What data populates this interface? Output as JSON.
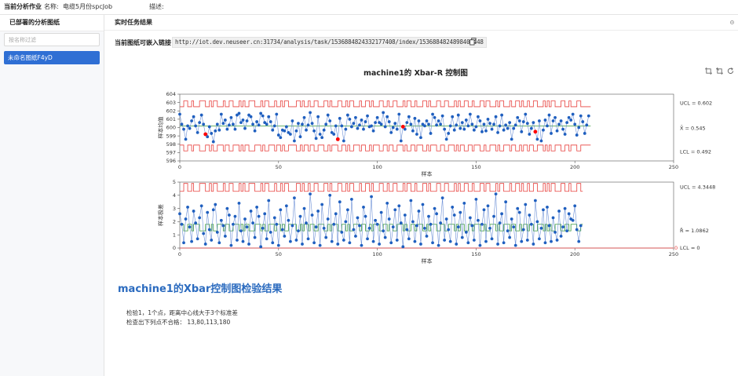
{
  "topbar": {
    "title": "当前分析作业",
    "name_label": "名称:",
    "name_value": "电缆5月份spcJob",
    "desc_label": "描述:"
  },
  "left_panel": {
    "title": "已部署的分析图纸",
    "filter_placeholder": "按名称过滤",
    "items": [
      {
        "label": "未命名图纸F4yD",
        "active": true
      }
    ]
  },
  "right_panel": {
    "title": "实时任务结果",
    "embed_label": "当前图纸可嵌入链接",
    "embed_url": "http://iot.dev.neuseer.cn:31734/analysis/task/1536884824332177408/index/1536884824898408448"
  },
  "icons": {
    "corner": "gear-icon",
    "copy": "copy-icon",
    "tools": [
      "crop-icon",
      "crop-restore-icon",
      "refresh-icon"
    ]
  },
  "colors": {
    "primary": "#2f6fd4",
    "result_title": "#2b6bbf",
    "data_line": "#6b8fd6",
    "data_point": "#1f5fbf",
    "control_limit": "#e8413e",
    "center_line": "#3a9a3a",
    "alarm_point": "#ff0000"
  },
  "chart_data": [
    {
      "type": "line",
      "title": "machine1的 Xbar-R 控制图",
      "xlabel": "样本",
      "ylabel": "样本均值",
      "xlim": [
        0,
        250
      ],
      "ylim": [
        596,
        604
      ],
      "x_ticks": [
        0,
        50,
        100,
        150,
        200,
        250
      ],
      "y_ticks": [
        596,
        597,
        598,
        599,
        600,
        601,
        602,
        603,
        604
      ],
      "limit_labels": {
        "ucl": "UCL = 0.602",
        "center": "X̄ = 0.545",
        "lcl": "LCL = 0.492"
      },
      "center_value": 600.2,
      "ucl_levels": [
        602.5,
        603.2
      ],
      "lcl_levels": [
        597.9,
        597.2
      ],
      "ucl_sequence": [
        0,
        0,
        1,
        1,
        0,
        0,
        1,
        0,
        0,
        0,
        1,
        1,
        1,
        0,
        0,
        1,
        0,
        1,
        1,
        0,
        0,
        0,
        1,
        0,
        0,
        1,
        1,
        0,
        0,
        0,
        1,
        0,
        1,
        0,
        0,
        1,
        1,
        1,
        0,
        0,
        0,
        1,
        0,
        1,
        1,
        0,
        0,
        0,
        1,
        0,
        0,
        1,
        0,
        1,
        1,
        0,
        0,
        0,
        0,
        1,
        1,
        0,
        1,
        0,
        0,
        1,
        0,
        0,
        1,
        1,
        0,
        0,
        0,
        1,
        1,
        0,
        1,
        0,
        0,
        0,
        1,
        1,
        0,
        0,
        1,
        0,
        1,
        1,
        0,
        0,
        0,
        1,
        0,
        0,
        1,
        1,
        0,
        1,
        0,
        0,
        0,
        1,
        1,
        0,
        0,
        1,
        0,
        0,
        1,
        1,
        0,
        0,
        0,
        1,
        0,
        1,
        1,
        0,
        0,
        1,
        0,
        0,
        0,
        1,
        1,
        0,
        1,
        0,
        0,
        0,
        1,
        1,
        0,
        0,
        1,
        1,
        0,
        0,
        0,
        1,
        0,
        1,
        0,
        0,
        1,
        1,
        0,
        0,
        1,
        0,
        0,
        0,
        1,
        1,
        0,
        1,
        1,
        0,
        0,
        0,
        1,
        0,
        1,
        1,
        0,
        0,
        0,
        1,
        0,
        0,
        1,
        1,
        0,
        1,
        0,
        0,
        1,
        0,
        0,
        1,
        1,
        0,
        0,
        0,
        1,
        0,
        1,
        0,
        1,
        1,
        0,
        0,
        0,
        1,
        1,
        0,
        0,
        1,
        0,
        0,
        0,
        1,
        1,
        0,
        0
      ],
      "series": [
        {
          "values": [
            601.6,
            600.4,
            599.8,
            598.6,
            600.2,
            599.9,
            600.8,
            601.3,
            600.2,
            599.4,
            600.6,
            601.5,
            600.4,
            599.2,
            598.9,
            600.1,
            599.3,
            598.3,
            599.6,
            600.4,
            599.7,
            601.6,
            600.5,
            600.9,
            599.8,
            600.3,
            601.2,
            600.4,
            599.8,
            601.5,
            601.7,
            600.6,
            600.9,
            599.9,
            600.8,
            601.5,
            601.3,
            600.4,
            599.6,
            600.7,
            600.3,
            601.7,
            601.4,
            600.6,
            600.4,
            601.3,
            600.7,
            599.7,
            600.2,
            601.6,
            599.1,
            598.8,
            599.7,
            599.6,
            600.1,
            599.4,
            599.2,
            600.8,
            598.4,
            599.6,
            600.5,
            598.9,
            600.4,
            601.2,
            599.7,
            600.3,
            601.8,
            600.5,
            599.6,
            598.7,
            601.3,
            599.2,
            598.8,
            599.7,
            600.4,
            601.5,
            600.8,
            599.4,
            599.2,
            600.2,
            598.6,
            601.1,
            600.2,
            598.4,
            599.8,
            601.5,
            601.0,
            600.1,
            600.5,
            601.2,
            599.9,
            600.3,
            600.9,
            599.8,
            600.7,
            601.4,
            600.1,
            600.2,
            599.6,
            600.6,
            601.2,
            600.6,
            600.4,
            601.8,
            600.1,
            601.3,
            600.7,
            599.4,
            600.0,
            600.5,
            599.8,
            601.6,
            598.4,
            600.1,
            599.8,
            600.6,
            601.3,
            600.4,
            599.6,
            601.1,
            599.2,
            600.8,
            598.8,
            600.4,
            600.2,
            600.8,
            600.4,
            599.3,
            601.6,
            601.2,
            600.3,
            600.8,
            600.4,
            601.4,
            599.8,
            598.6,
            599.3,
            600.2,
            601.3,
            599.7,
            600.3,
            601.5,
            599.9,
            600.6,
            599.8,
            600.9,
            600.2,
            601.6,
            600.4,
            599.7,
            600.1,
            601.3,
            600.8,
            599.5,
            600.4,
            599.6,
            601.0,
            600.5,
            599.8,
            600.4,
            601.3,
            599.4,
            600.2,
            601.5,
            599.7,
            600.3,
            599.9,
            600.6,
            598.6,
            599.9,
            600.3,
            601.2,
            600.8,
            599.5,
            600.7,
            601.6,
            600.5,
            599.2,
            599.9,
            600.6,
            599.5,
            598.6,
            600.8,
            598.4,
            599.7,
            600.9,
            600.2,
            601.5,
            599.3,
            600.8,
            601.2,
            599.6,
            600.4,
            600.8,
            599.8,
            599.2,
            600.6,
            601.2,
            600.9,
            601.6,
            600.4,
            599.1,
            600.0,
            601.4,
            600.7,
            599.3,
            600.3,
            601.4
          ],
          "alarm_points": [
            13,
            80,
            113,
            180
          ]
        }
      ]
    },
    {
      "type": "line",
      "xlabel": "样本",
      "ylabel": "样本极差",
      "xlim": [
        0,
        250
      ],
      "ylim": [
        0,
        5
      ],
      "x_ticks": [
        0,
        50,
        100,
        150,
        200,
        250
      ],
      "y_ticks": [
        0,
        1,
        2,
        3,
        4,
        5
      ],
      "limit_labels": {
        "ucl": "UCL = 4.3448",
        "center": "R̄ = 1.0862",
        "lcl": "LCL = 0"
      },
      "zero_label": "0",
      "ucl_levels": [
        4.3,
        4.9
      ],
      "center_levels": [
        1.3,
        1.8
      ],
      "series": [
        {
          "values": [
            2.6,
            1.8,
            0.4,
            2.2,
            3.1,
            1.6,
            0.5,
            2.8,
            1.9,
            0.7,
            2.3,
            3.2,
            1.1,
            0.3,
            2.7,
            1.4,
            0.6,
            2.9,
            3.3,
            1.2,
            0.4,
            2.1,
            1.7,
            0.9,
            3.0,
            2.5,
            0.2,
            1.8,
            2.4,
            0.6,
            3.4,
            1.3,
            0.5,
            2.2,
            1.6,
            0.3,
            2.8,
            1.9,
            0.8,
            3.1,
            2.4,
            0.1,
            1.5,
            2.6,
            0.7,
            3.6,
            1.2,
            0.4,
            2.3,
            1.8,
            0.2,
            2.9,
            1.4,
            0.9,
            3.2,
            2.1,
            0.5,
            1.7,
            3.8,
            0.6,
            1.3,
            2.4,
            0.3,
            3.0,
            1.9,
            0.7,
            4.1,
            2.5,
            0.4,
            1.6,
            2.8,
            0.2,
            3.3,
            1.5,
            0.8,
            2.2,
            4.0,
            0.5,
            1.8,
            2.6,
            0.3,
            3.5,
            1.2,
            0.6,
            2.0,
            2.9,
            0.4,
            3.7,
            1.4,
            0.9,
            2.3,
            1.7,
            0.2,
            3.1,
            2.4,
            0.7,
            1.5,
            3.9,
            0.5,
            2.1,
            1.8,
            0.3,
            2.7,
            1.3,
            0.8,
            3.4,
            2.2,
            0.4,
            1.6,
            2.9,
            0.6,
            3.2,
            1.9,
            0.1,
            2.5,
            1.4,
            0.7,
            3.6,
            2.0,
            0.5,
            1.7,
            2.8,
            0.3,
            3.3,
            1.5,
            0.9,
            2.4,
            1.8,
            0.4,
            3.0,
            2.6,
            0.2,
            1.9,
            3.8,
            0.6,
            2.2,
            1.4,
            0.5,
            3.1,
            2.5,
            0.3,
            1.6,
            2.7,
            0.8,
            3.4,
            1.2,
            0.4,
            2.3,
            1.7,
            0.6,
            3.7,
            2.1,
            0.2,
            1.8,
            2.9,
            0.5,
            3.2,
            1.5,
            0.7,
            2.4,
            4.1,
            0.3,
            1.9,
            2.6,
            0.4,
            3.5,
            1.3,
            0.8,
            2.2,
            1.6,
            0.2,
            3.0,
            2.7,
            0.5,
            1.4,
            3.3,
            0.6,
            2.5,
            1.8,
            0.3,
            3.6,
            2.0,
            0.7,
            1.5,
            2.9,
            0.4,
            3.1,
            1.7,
            0.5,
            2.3,
            1.2,
            0.6,
            2.8,
            0.9,
            1.6,
            3.0,
            1.3,
            2.6,
            2.2,
            2.1,
            3.2,
            1.4,
            0.5,
            1.7
          ],
          "alarm_points": []
        }
      ]
    }
  ],
  "results": {
    "title": "machine1的Xbar控制图检验结果",
    "lines": [
      "检验1，1个点，距离中心线大于3个标准差",
      "检查出下列点不合格： 13,80,113,180"
    ]
  }
}
